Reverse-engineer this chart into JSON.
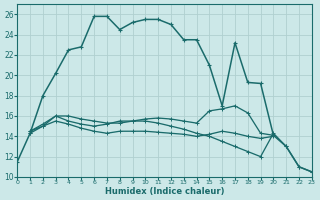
{
  "xlabel": "Humidex (Indice chaleur)",
  "background_color": "#cce8e8",
  "grid_color": "#b8d8d8",
  "line_color": "#1a6b6b",
  "xlim": [
    0,
    23
  ],
  "ylim": [
    10,
    27
  ],
  "xticks": [
    0,
    1,
    2,
    3,
    4,
    5,
    6,
    7,
    8,
    9,
    10,
    11,
    12,
    13,
    14,
    15,
    16,
    17,
    18,
    19,
    20,
    21,
    22,
    23
  ],
  "yticks": [
    10,
    12,
    14,
    16,
    18,
    20,
    22,
    24,
    26
  ],
  "line1_x": [
    0,
    1,
    2,
    3,
    4,
    5,
    6,
    7,
    8,
    9,
    10,
    11,
    12,
    13,
    14,
    15,
    16,
    17,
    18,
    19,
    20,
    21,
    22,
    23
  ],
  "line1_y": [
    11.5,
    14.3,
    18.0,
    20.2,
    22.5,
    22.8,
    25.8,
    25.8,
    24.5,
    25.2,
    25.5,
    25.5,
    25.0,
    23.5,
    23.5,
    21.0,
    17.0,
    23.2,
    19.3,
    19.2,
    14.1,
    13.0,
    11.0,
    10.5
  ],
  "line2_x": [
    1,
    2,
    3,
    4,
    5,
    6,
    7,
    8,
    9,
    10,
    11,
    12,
    13,
    14,
    15,
    16,
    17,
    18,
    19,
    20
  ],
  "line2_y": [
    14.5,
    15.2,
    16.0,
    15.5,
    15.2,
    15.0,
    15.2,
    15.5,
    15.5,
    15.7,
    15.8,
    15.7,
    15.5,
    15.3,
    16.5,
    16.7,
    17.0,
    16.3,
    14.3,
    14.1
  ],
  "line3_x": [
    1,
    2,
    3,
    4,
    5,
    6,
    7,
    8,
    9,
    10,
    11,
    12,
    13,
    14,
    15,
    16,
    17,
    18,
    19,
    20
  ],
  "line3_y": [
    14.3,
    15.0,
    15.5,
    15.2,
    14.8,
    14.5,
    14.3,
    14.5,
    14.5,
    14.5,
    14.4,
    14.3,
    14.2,
    14.0,
    14.2,
    14.5,
    14.3,
    14.0,
    13.8,
    14.0
  ],
  "line4_x": [
    1,
    2,
    3,
    4,
    5,
    6,
    7,
    8,
    9,
    10,
    11,
    12,
    13,
    14,
    15,
    16,
    17,
    18,
    19,
    20,
    21,
    22,
    23
  ],
  "line4_y": [
    14.5,
    15.0,
    16.0,
    16.0,
    15.7,
    15.5,
    15.3,
    15.3,
    15.5,
    15.5,
    15.3,
    15.0,
    14.7,
    14.3,
    14.0,
    13.5,
    13.0,
    12.5,
    12.0,
    14.3,
    13.0,
    11.0,
    10.5
  ]
}
